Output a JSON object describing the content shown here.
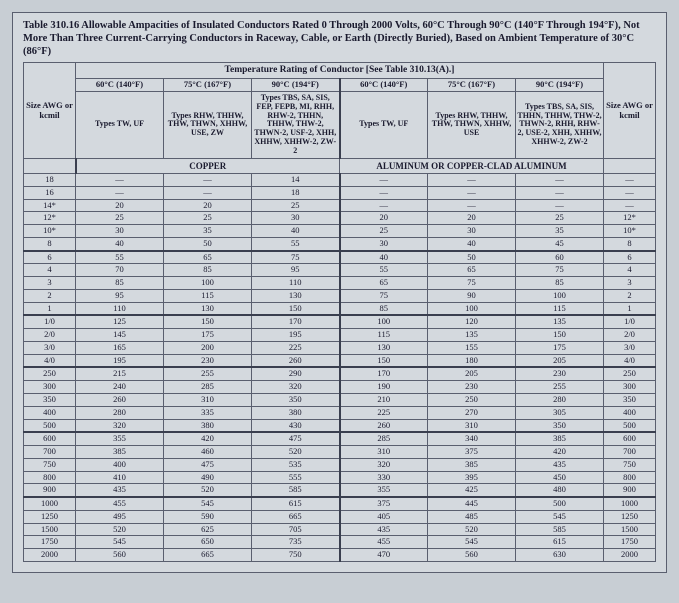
{
  "title": "Table 310.16 Allowable Ampacities of Insulated Conductors Rated 0 Through 2000 Volts, 60°C Through 90°C (140°F Through 194°F), Not More Than Three Current-Carrying Conductors in Raceway, Cable, or Earth (Directly Buried), Based on Ambient Temperature of 30°C (86°F)",
  "banner": "Temperature Rating of Conductor [See Table 310.13(A).]",
  "temps": [
    "60°C (140°F)",
    "75°C (167°F)",
    "90°C (194°F)",
    "60°C (140°F)",
    "75°C (167°F)",
    "90°C (194°F)"
  ],
  "types": [
    "Types TW, UF",
    "Types RHW, THHW, THW, THWN, XHHW, USE, ZW",
    "Types TBS, SA, SIS, FEP, FEPB, MI, RHH, RHW-2, THHN, THHW, THW-2, THWN-2, USF-2, XHH, XHHW, XHHW-2, ZW-2",
    "Types TW, UF",
    "Types RHW, THHW, THW, THWN, XHHW, USE",
    "Types TBS, SA, SIS, THHN, THHW, THW-2, THWN-2, RHH, RHW-2, USE-2, XHH, XHHW, XHHW-2, ZW-2"
  ],
  "materials": [
    "COPPER",
    "ALUMINUM OR COPPER-CLAD ALUMINUM"
  ],
  "sizeHeader": "Size AWG or kcmil",
  "groups": [
    [
      {
        "s": "18",
        "v": [
          "—",
          "—",
          "14",
          "—",
          "—",
          "—",
          "—"
        ]
      },
      {
        "s": "16",
        "v": [
          "—",
          "—",
          "18",
          "—",
          "—",
          "—",
          "—"
        ]
      },
      {
        "s": "14*",
        "v": [
          "20",
          "20",
          "25",
          "—",
          "—",
          "—",
          "—"
        ]
      },
      {
        "s": "12*",
        "v": [
          "25",
          "25",
          "30",
          "20",
          "20",
          "25",
          "12*"
        ]
      },
      {
        "s": "10*",
        "v": [
          "30",
          "35",
          "40",
          "25",
          "30",
          "35",
          "10*"
        ]
      },
      {
        "s": "8",
        "v": [
          "40",
          "50",
          "55",
          "30",
          "40",
          "45",
          "8"
        ]
      }
    ],
    [
      {
        "s": "6",
        "v": [
          "55",
          "65",
          "75",
          "40",
          "50",
          "60",
          "6"
        ]
      },
      {
        "s": "4",
        "v": [
          "70",
          "85",
          "95",
          "55",
          "65",
          "75",
          "4"
        ]
      },
      {
        "s": "3",
        "v": [
          "85",
          "100",
          "110",
          "65",
          "75",
          "85",
          "3"
        ]
      },
      {
        "s": "2",
        "v": [
          "95",
          "115",
          "130",
          "75",
          "90",
          "100",
          "2"
        ]
      },
      {
        "s": "1",
        "v": [
          "110",
          "130",
          "150",
          "85",
          "100",
          "115",
          "1"
        ]
      }
    ],
    [
      {
        "s": "1/0",
        "v": [
          "125",
          "150",
          "170",
          "100",
          "120",
          "135",
          "1/0"
        ]
      },
      {
        "s": "2/0",
        "v": [
          "145",
          "175",
          "195",
          "115",
          "135",
          "150",
          "2/0"
        ]
      },
      {
        "s": "3/0",
        "v": [
          "165",
          "200",
          "225",
          "130",
          "155",
          "175",
          "3/0"
        ]
      },
      {
        "s": "4/0",
        "v": [
          "195",
          "230",
          "260",
          "150",
          "180",
          "205",
          "4/0"
        ]
      }
    ],
    [
      {
        "s": "250",
        "v": [
          "215",
          "255",
          "290",
          "170",
          "205",
          "230",
          "250"
        ]
      },
      {
        "s": "300",
        "v": [
          "240",
          "285",
          "320",
          "190",
          "230",
          "255",
          "300"
        ]
      },
      {
        "s": "350",
        "v": [
          "260",
          "310",
          "350",
          "210",
          "250",
          "280",
          "350"
        ]
      },
      {
        "s": "400",
        "v": [
          "280",
          "335",
          "380",
          "225",
          "270",
          "305",
          "400"
        ]
      },
      {
        "s": "500",
        "v": [
          "320",
          "380",
          "430",
          "260",
          "310",
          "350",
          "500"
        ]
      }
    ],
    [
      {
        "s": "600",
        "v": [
          "355",
          "420",
          "475",
          "285",
          "340",
          "385",
          "600"
        ]
      },
      {
        "s": "700",
        "v": [
          "385",
          "460",
          "520",
          "310",
          "375",
          "420",
          "700"
        ]
      },
      {
        "s": "750",
        "v": [
          "400",
          "475",
          "535",
          "320",
          "385",
          "435",
          "750"
        ]
      },
      {
        "s": "800",
        "v": [
          "410",
          "490",
          "555",
          "330",
          "395",
          "450",
          "800"
        ]
      },
      {
        "s": "900",
        "v": [
          "435",
          "520",
          "585",
          "355",
          "425",
          "480",
          "900"
        ]
      }
    ],
    [
      {
        "s": "1000",
        "v": [
          "455",
          "545",
          "615",
          "375",
          "445",
          "500",
          "1000"
        ]
      },
      {
        "s": "1250",
        "v": [
          "495",
          "590",
          "665",
          "405",
          "485",
          "545",
          "1250"
        ]
      },
      {
        "s": "1500",
        "v": [
          "520",
          "625",
          "705",
          "435",
          "520",
          "585",
          "1500"
        ]
      },
      {
        "s": "1750",
        "v": [
          "545",
          "650",
          "735",
          "455",
          "545",
          "615",
          "1750"
        ]
      },
      {
        "s": "2000",
        "v": [
          "560",
          "665",
          "750",
          "470",
          "560",
          "630",
          "2000"
        ]
      }
    ]
  ],
  "style": {
    "bg": "#c8ced4",
    "pageBg": "#d4d9de",
    "border": "#5a5f6f",
    "heavy": "#3a3f4f",
    "text": "#1a1a2e",
    "font": "Times New Roman",
    "titleSize": 10.5,
    "cellSize": 8.5
  }
}
